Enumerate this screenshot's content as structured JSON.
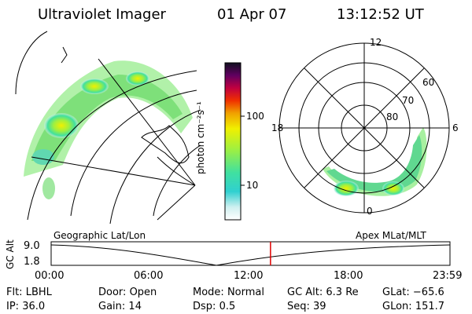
{
  "header": {
    "title": "Ultraviolet Imager",
    "date": "01 Apr 07",
    "time": "13:12:52 UT"
  },
  "colorbar": {
    "label": "photon cm⁻²s⁻¹",
    "ticks": [
      "100",
      "10"
    ]
  },
  "polar": {
    "mlt_labels": [
      "12",
      "18",
      "6",
      "0"
    ],
    "lat_labels": [
      "60",
      "70",
      "80"
    ]
  },
  "timeline": {
    "left_label": "Geographic Lat/Lon",
    "right_label": "Apex MLat/MLT",
    "axis_title": "GC Alt",
    "y_ticks": [
      "9.0",
      "1.8"
    ],
    "x_ticks": [
      "00:00",
      "06:00",
      "12:00",
      "18:00",
      "23:59"
    ],
    "current_time_fraction": 0.55
  },
  "status": {
    "row1": [
      {
        "key": "Flt:",
        "val": "LBHL"
      },
      {
        "key": "Door:",
        "val": "Open"
      },
      {
        "key": "Mode:",
        "val": "Normal"
      },
      {
        "key": "GC Alt:",
        "val": "6.3 Re"
      },
      {
        "key": "GLat:",
        "val": "−65.6"
      }
    ],
    "row2": [
      {
        "key": "IP:",
        "val": "36.0"
      },
      {
        "key": "Gain:",
        "val": "14"
      },
      {
        "key": "Dsp:",
        "val": "0.5"
      },
      {
        "key": "Seq:",
        "val": "39"
      },
      {
        "key": "GLon:",
        "val": "151.7"
      }
    ]
  },
  "colors": {
    "accent_marker": "#e00000"
  }
}
